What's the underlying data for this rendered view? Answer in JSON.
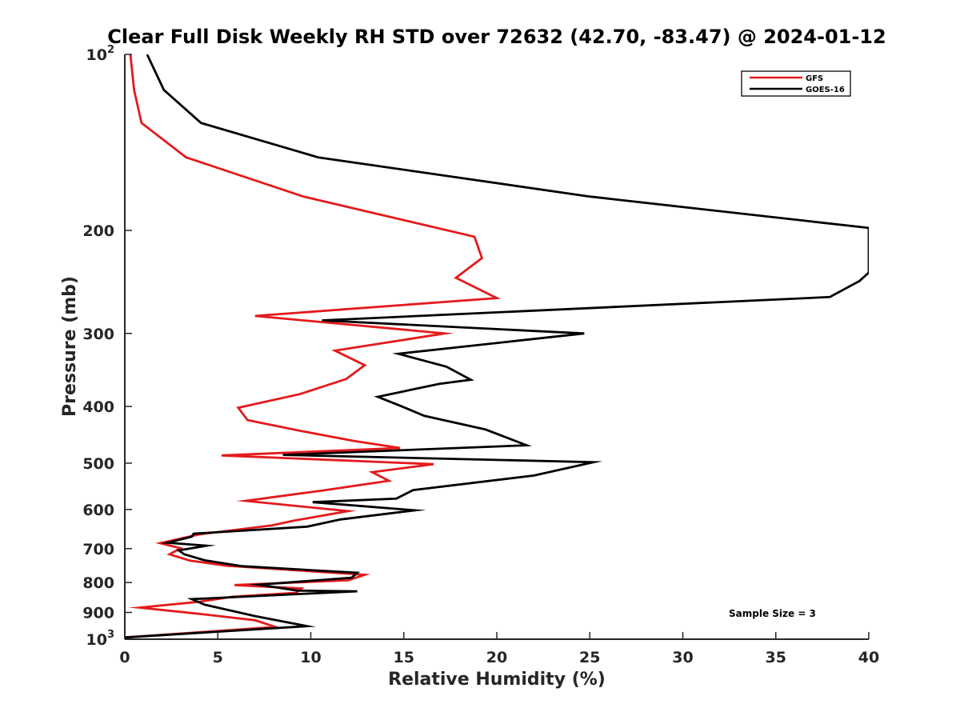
{
  "chart_data": {
    "type": "line",
    "title": "Clear Full Disk Weekly RH STD over 72632 (42.70, -83.47) @ 2024-01-12",
    "xlabel": "Relative Humidity (%)",
    "ylabel": "Pressure (mb)",
    "xlim": [
      0,
      40
    ],
    "ylim": [
      100,
      1000
    ],
    "y_scale": "log",
    "y_reversed": true,
    "grid": false,
    "legend_position": "top-right",
    "x_ticks": [
      "0",
      "5",
      "10",
      "15",
      "20",
      "25",
      "30",
      "35",
      "40"
    ],
    "x_tick_values": [
      0,
      5,
      10,
      15,
      20,
      25,
      30,
      35,
      40
    ],
    "y_ticks": [
      {
        "value": 100,
        "base": "10",
        "exp": "2"
      },
      {
        "value": 200,
        "label": "200"
      },
      {
        "value": 300,
        "label": "300"
      },
      {
        "value": 400,
        "label": "400"
      },
      {
        "value": 500,
        "label": "500"
      },
      {
        "value": 600,
        "label": "600"
      },
      {
        "value": 700,
        "label": "700"
      },
      {
        "value": 800,
        "label": "800"
      },
      {
        "value": 900,
        "label": "900"
      },
      {
        "value": 1000,
        "base": "10",
        "exp": "3"
      }
    ],
    "series": [
      {
        "name": "GFS",
        "color": "#e41a1c",
        "points": [
          [
            0.3,
            100
          ],
          [
            0.5,
            115
          ],
          [
            0.9,
            131
          ],
          [
            3.3,
            150
          ],
          [
            9.6,
            175
          ],
          [
            18.8,
            205
          ],
          [
            19.2,
            223
          ],
          [
            17.8,
            241
          ],
          [
            20.0,
            261
          ],
          [
            7.0,
            280
          ],
          [
            17.2,
            300
          ],
          [
            11.3,
            321
          ],
          [
            12.9,
            340
          ],
          [
            11.9,
            359
          ],
          [
            9.4,
            381
          ],
          [
            6.1,
            402
          ],
          [
            6.6,
            422
          ],
          [
            9.4,
            440
          ],
          [
            12.3,
            458
          ],
          [
            14.8,
            471
          ],
          [
            5.2,
            485
          ],
          [
            16.6,
            502
          ],
          [
            13.3,
            518
          ],
          [
            14.2,
            536
          ],
          [
            10.6,
            557
          ],
          [
            6.5,
            580
          ],
          [
            12.0,
            604
          ],
          [
            9.1,
            627
          ],
          [
            7.9,
            639
          ],
          [
            4.0,
            662
          ],
          [
            1.9,
            685
          ],
          [
            3.0,
            699
          ],
          [
            2.4,
            716
          ],
          [
            3.5,
            734
          ],
          [
            5.5,
            749
          ],
          [
            12.9,
            776
          ],
          [
            12.0,
            793
          ],
          [
            5.9,
            808
          ],
          [
            9.5,
            819
          ],
          [
            9.2,
            833
          ],
          [
            5.8,
            846
          ],
          [
            4.0,
            863
          ],
          [
            0.8,
            883
          ],
          [
            4.0,
            905
          ],
          [
            7.0,
            928
          ],
          [
            8.1,
            953
          ],
          [
            0.0,
            993
          ]
        ]
      },
      {
        "name": "GOES-16",
        "color": "#000000",
        "points": [
          [
            1.2,
            100
          ],
          [
            2.1,
            115
          ],
          [
            4.1,
            131
          ],
          [
            10.4,
            150
          ],
          [
            25.0,
            175
          ],
          [
            40.0,
            198
          ],
          [
            40.0,
            236
          ],
          [
            39.5,
            244
          ],
          [
            37.9,
            260
          ],
          [
            10.6,
            285
          ],
          [
            24.7,
            300
          ],
          [
            14.7,
            325
          ],
          [
            17.3,
            342
          ],
          [
            18.6,
            360
          ],
          [
            16.9,
            366
          ],
          [
            13.6,
            385
          ],
          [
            14.9,
            400
          ],
          [
            16.1,
            415
          ],
          [
            19.4,
            438
          ],
          [
            21.6,
            466
          ],
          [
            8.5,
            484
          ],
          [
            25.2,
            498
          ],
          [
            22.0,
            525
          ],
          [
            15.5,
            556
          ],
          [
            14.6,
            575
          ],
          [
            10.1,
            583
          ],
          [
            15.6,
            602
          ],
          [
            11.6,
            624
          ],
          [
            9.8,
            642
          ],
          [
            3.7,
            660
          ],
          [
            3.6,
            668
          ],
          [
            2.3,
            684
          ],
          [
            4.4,
            692
          ],
          [
            2.9,
            705
          ],
          [
            3.2,
            716
          ],
          [
            4.3,
            733
          ],
          [
            6.3,
            750
          ],
          [
            12.5,
            770
          ],
          [
            12.2,
            785
          ],
          [
            7.2,
            807
          ],
          [
            9.3,
            826
          ],
          [
            12.5,
            828
          ],
          [
            3.6,
            854
          ],
          [
            4.3,
            873
          ],
          [
            7.0,
            913
          ],
          [
            9.8,
            950
          ],
          [
            0.0,
            993
          ]
        ]
      }
    ],
    "annotations": {
      "sample_size": "Sample Size = 3"
    }
  }
}
